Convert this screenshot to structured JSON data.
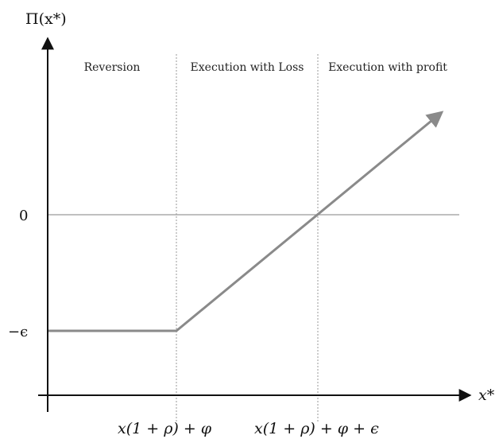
{
  "diagram": {
    "y_axis_title": "Π(x*)",
    "x_axis_title": "x*",
    "y_ticks": {
      "zero": "0",
      "neg": "−ϵ"
    },
    "x_ticks": {
      "first": "x(1 + ρ) + φ",
      "second": "x(1 + ρ) + φ + ϵ"
    },
    "regions": [
      "Reversion",
      "Execution with Loss",
      "Execution with profit"
    ],
    "colors": {
      "axis": "#111111",
      "curve": "#8a8a8a",
      "divider": "#9a9a9a",
      "zero_line": "#9a9a9a"
    }
  }
}
